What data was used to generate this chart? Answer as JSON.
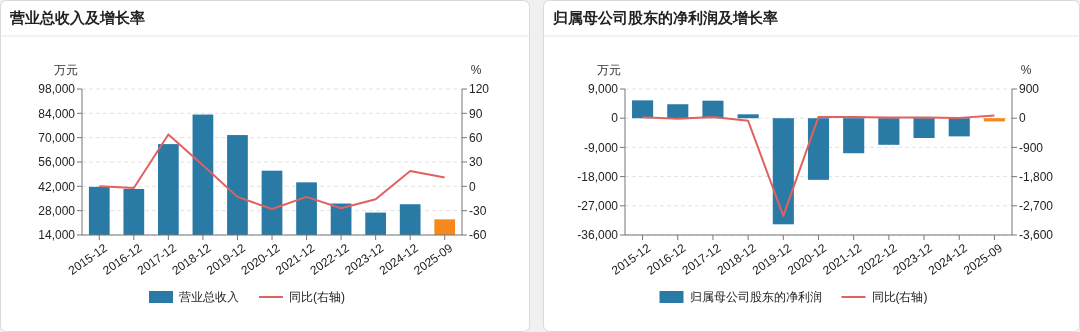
{
  "chart_data": [
    {
      "type": "bar",
      "title": "营业总收入及增长率",
      "ylabel": "万元",
      "y2label": "%",
      "categories": [
        "2015-12",
        "2016-12",
        "2017-12",
        "2018-12",
        "2019-12",
        "2020-12",
        "2021-12",
        "2022-12",
        "2023-12",
        "2024-12",
        "2025-09"
      ],
      "series": [
        {
          "name": "营业总收入",
          "axis": "y",
          "color": "#2a7aa6",
          "colors": [
            "#2a7aa6",
            "#2a7aa6",
            "#2a7aa6",
            "#2a7aa6",
            "#2a7aa6",
            "#2a7aa6",
            "#2a7aa6",
            "#2a7aa6",
            "#2a7aa6",
            "#2a7aa6",
            "#f5891f"
          ],
          "values": [
            41700,
            40500,
            66300,
            83300,
            71500,
            51000,
            44300,
            32100,
            26900,
            31700,
            23000
          ]
        },
        {
          "name": "同比(右轴)",
          "type": "line",
          "axis": "y2",
          "color": "#e0615e",
          "values": [
            0,
            -2,
            64,
            26,
            -13,
            -28,
            -13,
            -27,
            -16,
            19,
            11
          ]
        }
      ],
      "ylim": [
        14000,
        98000
      ],
      "yticks": [
        {
          "value": 14000,
          "label": "14,000"
        },
        {
          "value": 28000,
          "label": "28,000"
        },
        {
          "value": 42000,
          "label": "42,000"
        },
        {
          "value": 56000,
          "label": "56,000"
        },
        {
          "value": 70000,
          "label": "70,000"
        },
        {
          "value": 84000,
          "label": "84,000"
        },
        {
          "value": 98000,
          "label": "98,000"
        }
      ],
      "y2lim": [
        -60,
        120
      ],
      "y2ticks": [
        -60,
        -30,
        0,
        30,
        60,
        90,
        120
      ],
      "grid": "y",
      "legend": "bottom",
      "marker": "none"
    },
    {
      "type": "bar",
      "title": "归属母公司股东的净利润及增长率",
      "ylabel": "万元",
      "y2label": "%",
      "categories": [
        "2015-12",
        "2016-12",
        "2017-12",
        "2018-12",
        "2019-12",
        "2020-12",
        "2021-12",
        "2022-12",
        "2023-12",
        "2024-12",
        "2025-09"
      ],
      "series": [
        {
          "name": "归属母公司股东的净利润",
          "axis": "y",
          "color": "#2a7aa6",
          "colors": [
            "#2a7aa6",
            "#2a7aa6",
            "#2a7aa6",
            "#2a7aa6",
            "#2a7aa6",
            "#2a7aa6",
            "#2a7aa6",
            "#2a7aa6",
            "#2a7aa6",
            "#2a7aa6",
            "#f5891f"
          ],
          "values": [
            5500,
            4300,
            5400,
            1200,
            -32700,
            -19000,
            -10800,
            -8200,
            -6100,
            -5600,
            -1000
          ]
        },
        {
          "name": "同比(右轴)",
          "type": "line",
          "axis": "y2",
          "color": "#e0615e",
          "values": [
            30,
            -20,
            40,
            -80,
            -3010,
            40,
            40,
            20,
            20,
            10,
            80
          ]
        }
      ],
      "ylim": [
        -36000,
        9000
      ],
      "yticks": [
        {
          "value": -36000,
          "label": "-36,000"
        },
        {
          "value": -27000,
          "label": "-27,000"
        },
        {
          "value": -18000,
          "label": "-18,000"
        },
        {
          "value": -9000,
          "label": "-9,000"
        },
        0,
        {
          "value": 9000,
          "label": "9,000"
        }
      ],
      "y2lim": [
        -3600,
        900
      ],
      "y2ticks": [
        {
          "value": -3600,
          "label": "-3,600"
        },
        {
          "value": -2700,
          "label": "-2,700"
        },
        {
          "value": -1800,
          "label": "-1,800"
        },
        {
          "value": -900,
          "label": "-900"
        },
        0,
        {
          "value": 900,
          "label": "900"
        }
      ],
      "grid": "y",
      "legend": "bottom",
      "marker": "none"
    }
  ]
}
